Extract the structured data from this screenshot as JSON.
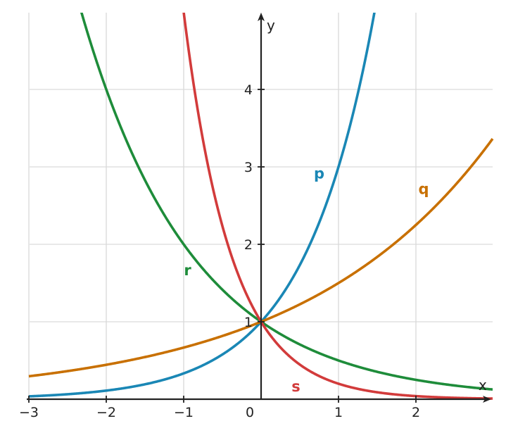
{
  "chart_data": {
    "type": "line",
    "title": "",
    "xlabel": "x",
    "ylabel": "y",
    "xlim": [
      -3,
      3
    ],
    "ylim": [
      0,
      5
    ],
    "grid": true,
    "x_ticks": [
      {
        "value": -3,
        "label": "−3"
      },
      {
        "value": -2,
        "label": "−2"
      },
      {
        "value": -1,
        "label": "−1"
      },
      {
        "value": 0,
        "label": "0"
      },
      {
        "value": 1,
        "label": "1"
      },
      {
        "value": 2,
        "label": "2"
      }
    ],
    "y_ticks": [
      {
        "value": 1,
        "label": "1"
      },
      {
        "value": 2,
        "label": "2"
      },
      {
        "value": 3,
        "label": "3"
      },
      {
        "value": 4,
        "label": "4"
      }
    ],
    "series": [
      {
        "name": "p",
        "function": "3^x",
        "base": 3,
        "color": "#1a87b5",
        "label_at": [
          0.75,
          2.85
        ]
      },
      {
        "name": "q",
        "function": "1.5^x",
        "base": 1.5,
        "color": "#c87000",
        "label_at": [
          2.1,
          2.65
        ]
      },
      {
        "name": "r",
        "function": "0.5^x",
        "base": 0.5,
        "color": "#1e8c3a",
        "label_at": [
          -0.95,
          1.6
        ]
      },
      {
        "name": "s",
        "function": "0.2^x",
        "base": 0.2,
        "color": "#d23b3b",
        "label_at": [
          0.45,
          0.1
        ]
      }
    ]
  }
}
